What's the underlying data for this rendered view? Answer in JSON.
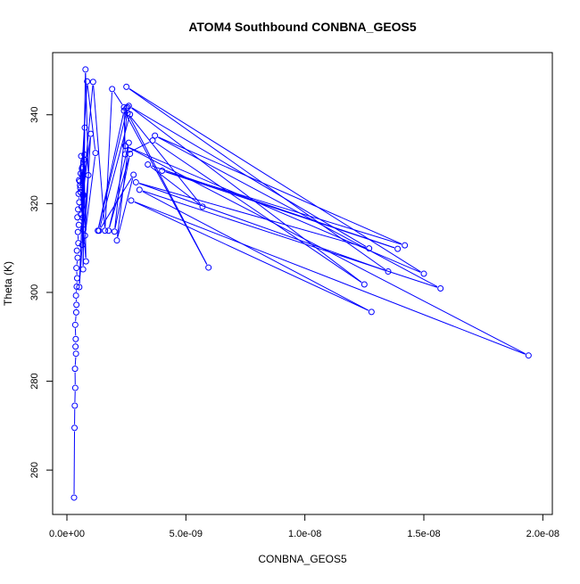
{
  "chart_data": {
    "type": "line",
    "title": "ATOM4 Southbound CONBNA_GEOS5",
    "xlabel": "CONBNA_GEOS5",
    "ylabel": "Theta (K)",
    "xlim": [
      -6e-10,
      2.04e-08
    ],
    "ylim": [
      250,
      354
    ],
    "x_ticks": [
      0,
      5e-09,
      1e-08,
      1.5e-08,
      2e-08
    ],
    "x_tick_labels": [
      "0.0e+00",
      "5.0e-09",
      "1.0e-08",
      "1.5e-08",
      "2.0e-08"
    ],
    "y_ticks": [
      260,
      280,
      300,
      320,
      340
    ],
    "y_tick_labels": [
      "260",
      "280",
      "300",
      "320",
      "340"
    ],
    "grid": false,
    "legend": "none",
    "color": "#0000ff",
    "markers": "open-circle",
    "series": [
      {
        "x": [
          3e-10,
          3.2e-10,
          3.3e-10,
          3.5e-10,
          3.4e-10,
          3.8e-10,
          3.6e-10,
          3.7e-10,
          3.5e-10,
          3.9e-10,
          4e-10,
          3.8e-10,
          4.1e-10,
          4.3e-10,
          4e-10,
          4.5e-10,
          4.2e-10,
          4.8e-10,
          4.6e-10,
          5e-10,
          4.4e-10,
          4.7e-10,
          5.2e-10,
          4.9e-10,
          5.5e-10,
          5.1e-10,
          5.8e-10,
          5.4e-10,
          6e-10,
          5.6e-10,
          6.5e-10,
          6.2e-10,
          7e-10,
          6.8e-10,
          7.5e-10,
          6e-10,
          7.2e-10,
          8e-10,
          6.6e-10,
          7.8e-10,
          9e-10,
          6.4e-10,
          7.4e-10,
          5.2e-10,
          6.9e-10,
          5.7e-10,
          6.3e-10,
          8.5e-10,
          1.2e-09,
          7.6e-10,
          1e-09,
          6.7e-10,
          1.1e-09,
          1.6e-09,
          1.9e-09,
          2.4e-09,
          2.45e-09,
          3.6e-09,
          1.25e-08,
          2.6e-09,
          1.27e-08,
          2.9e-09,
          1.35e-08,
          2.5e-09,
          1.5e-08,
          2.45e-09,
          1.94e-08,
          2.7e-09,
          1.28e-08,
          3.05e-09,
          1.57e-08,
          3.7e-09,
          1.42e-08,
          4e-09,
          1.39e-08,
          3.4e-09,
          5.7e-09,
          2.55e-09,
          5.95e-09,
          2.4e-09,
          1.3e-09,
          2.55e-09,
          2e-09,
          2.65e-09,
          1.75e-09,
          2.6e-09,
          2.1e-09,
          2.8e-09,
          1.35e-09,
          2.65e-09,
          2.5e-09
        ],
        "y": [
          253.8,
          269.5,
          274.5,
          278.5,
          282.8,
          286.2,
          287.8,
          289.5,
          292.7,
          295.5,
          297.2,
          299.3,
          301.3,
          303.2,
          305.5,
          307.8,
          309.4,
          311.1,
          313.6,
          315.2,
          316.9,
          318.7,
          320.3,
          322.2,
          324.1,
          325.3,
          326.8,
          325.0,
          330.7,
          323.5,
          328.2,
          319.2,
          321.9,
          305.2,
          337.1,
          317.5,
          329.9,
          307.0,
          316.8,
          350.2,
          326.4,
          310.7,
          331.0,
          301.2,
          314.2,
          322.6,
          327.9,
          347.5,
          331.4,
          312.8,
          335.7,
          322.0,
          347.4,
          313.9,
          345.8,
          341.7,
          331.1,
          334.2,
          301.8,
          342.0,
          309.9,
          324.8,
          304.7,
          346.3,
          304.2,
          333.0,
          285.8,
          320.7,
          295.6,
          323.1,
          300.9,
          335.3,
          310.6,
          327.4,
          309.8,
          328.8,
          319.3,
          340.4,
          305.6,
          340.9,
          313.9,
          341.7,
          313.7,
          331.2,
          313.9,
          333.7,
          311.7,
          326.5,
          313.9,
          340.1,
          341.5
        ]
      }
    ]
  }
}
